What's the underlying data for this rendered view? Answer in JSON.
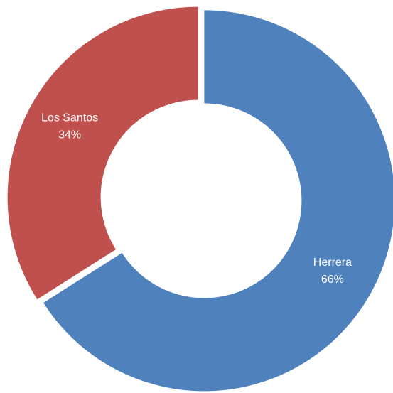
{
  "chart_data": {
    "type": "pie",
    "donut": true,
    "categories": [
      "Herrera",
      "Los Santos"
    ],
    "values": [
      66,
      34
    ],
    "value_labels": [
      "66%",
      "34%"
    ],
    "colors": [
      "#4f81bd",
      "#c0504d"
    ]
  }
}
